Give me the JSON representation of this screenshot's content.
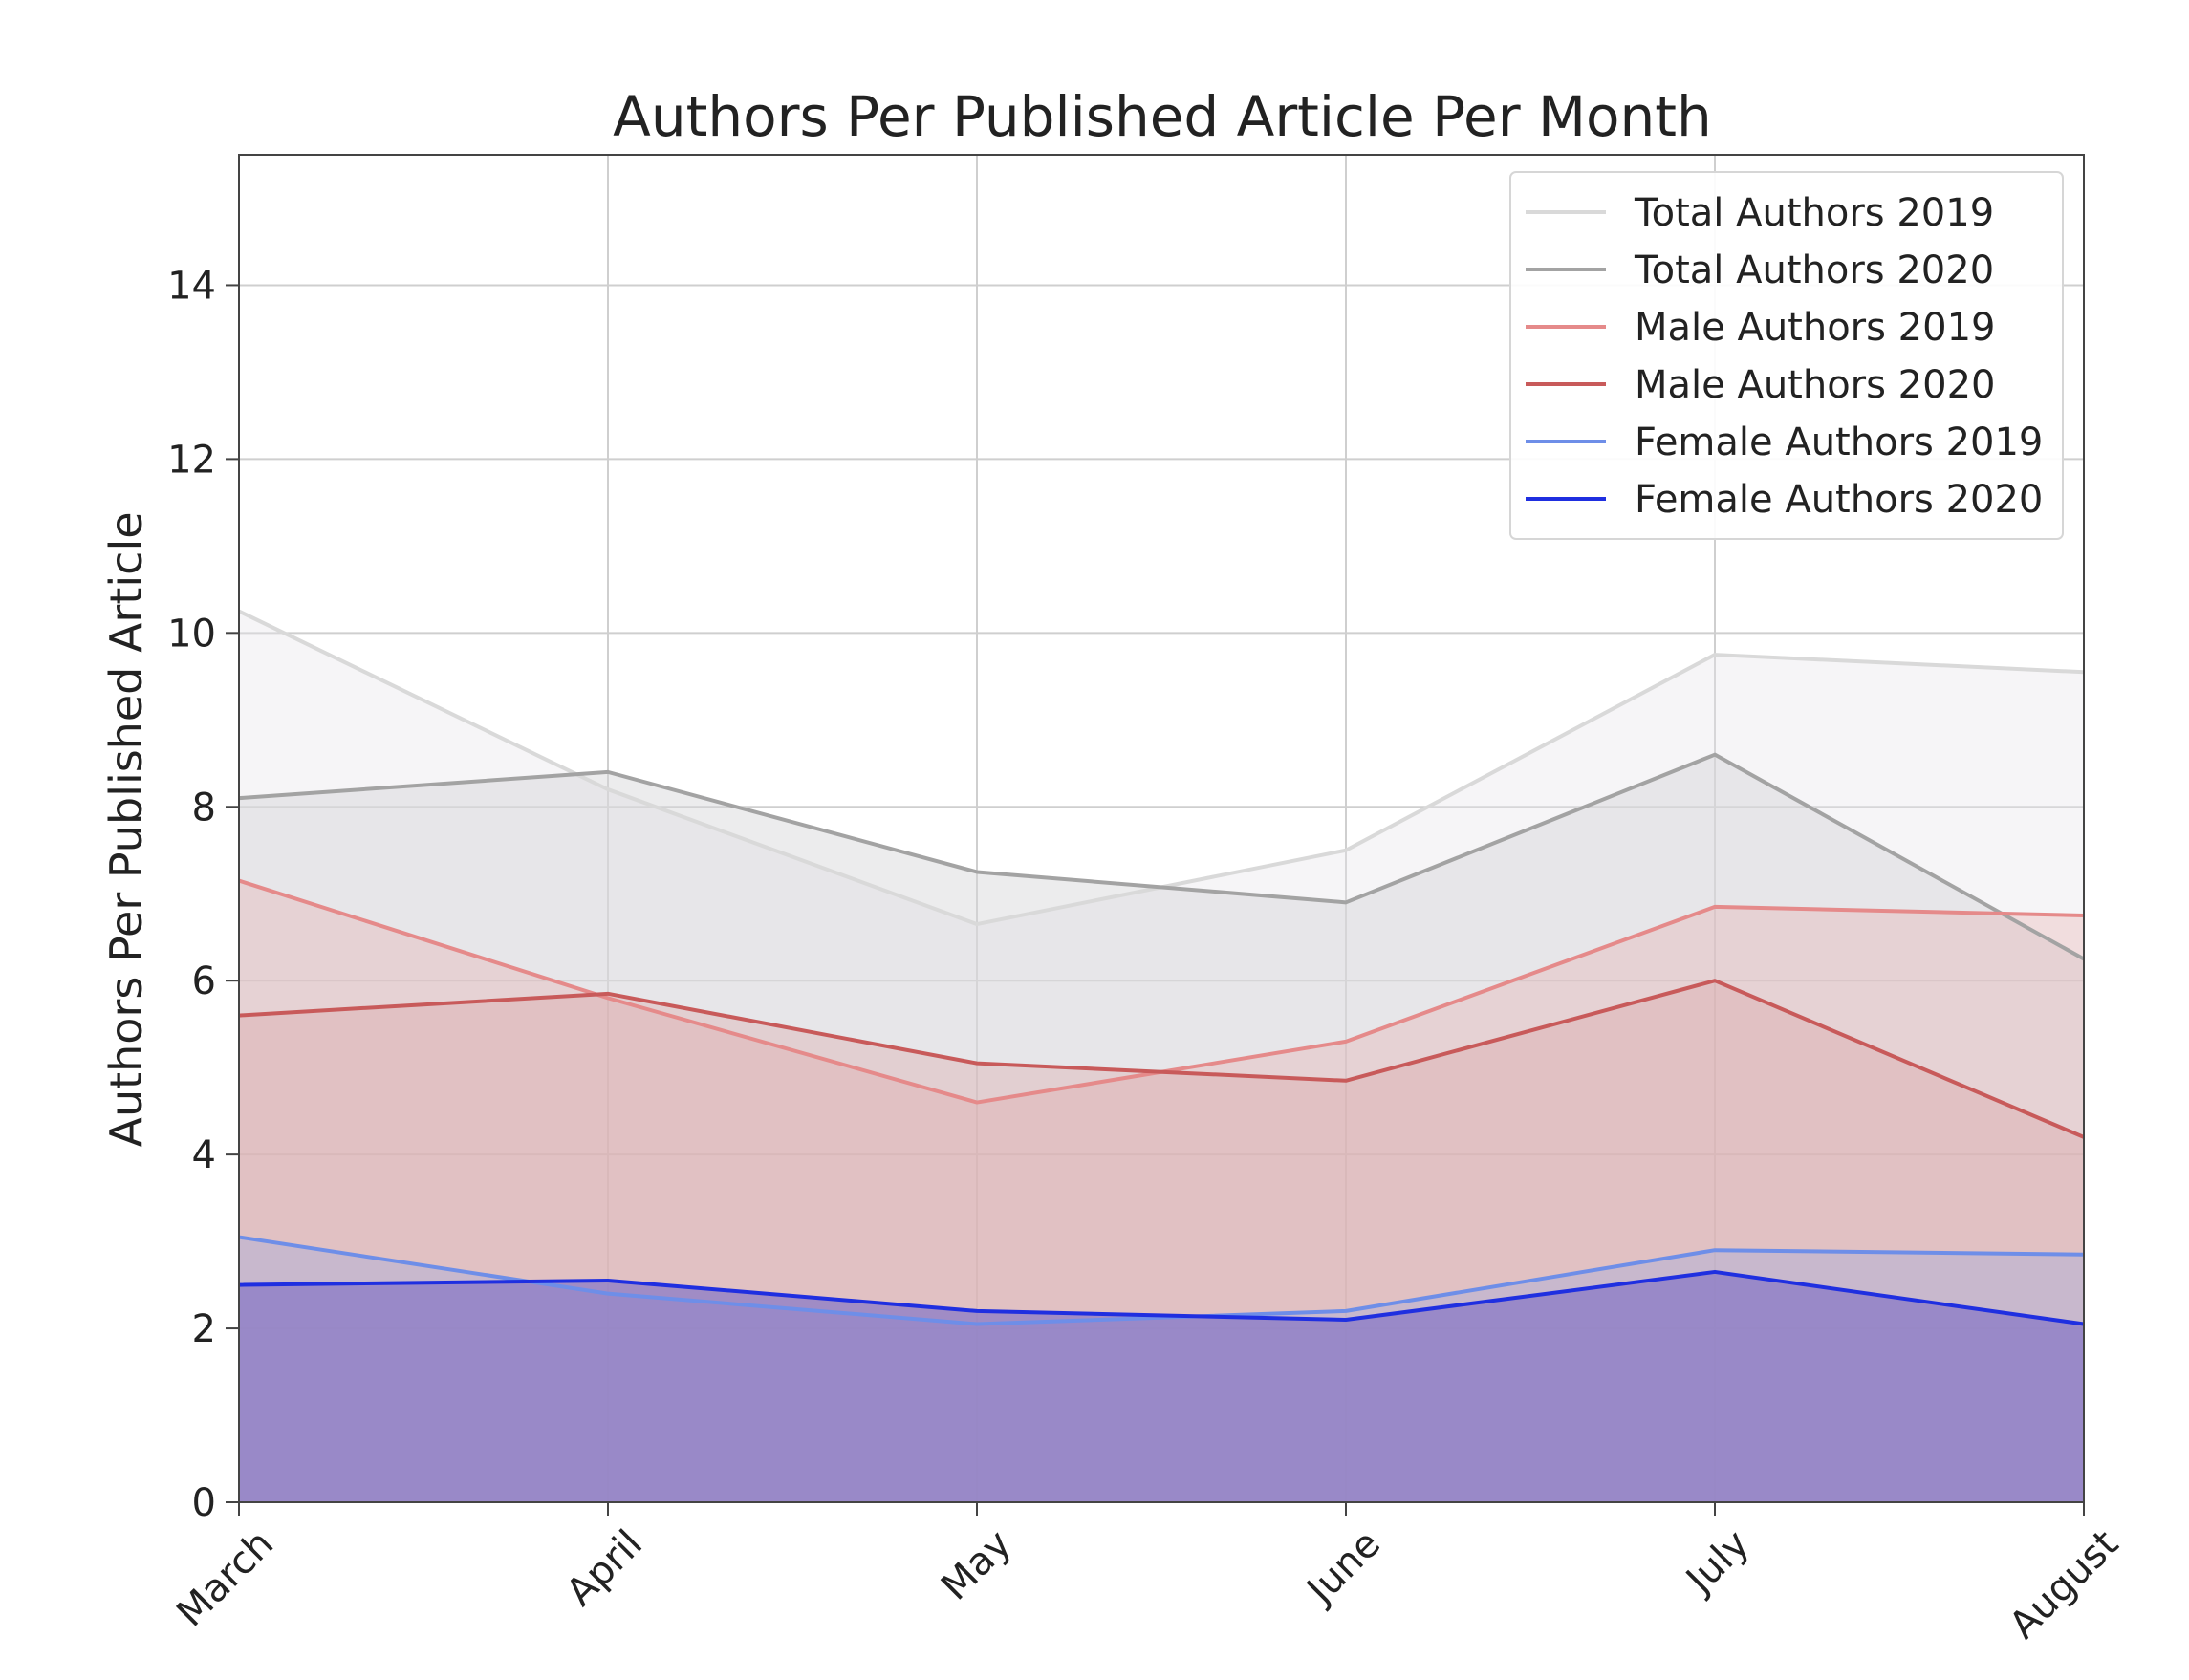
{
  "chart_data": {
    "type": "area",
    "title": "Authors Per Published Article Per Month",
    "ylabel": "Authors Per Published Article",
    "xlabel": "",
    "categories": [
      "March",
      "April",
      "May",
      "June",
      "July",
      "August"
    ],
    "ylim": [
      0,
      15.5
    ],
    "yticks": [
      0,
      2,
      4,
      6,
      8,
      10,
      12,
      14
    ],
    "grid": true,
    "legend_position": "top-right",
    "series": [
      {
        "name": "Total Authors 2019",
        "values": [
          10.25,
          8.2,
          6.65,
          7.5,
          9.75,
          9.55
        ],
        "color": "#d9d9d9",
        "fill": "#e6e3e8",
        "fill_opacity": 0.35
      },
      {
        "name": "Total Authors 2020",
        "values": [
          8.1,
          8.4,
          7.25,
          6.9,
          8.6,
          6.25
        ],
        "color": "#a3a3a3",
        "fill": "#d4d4d6",
        "fill_opacity": 0.45
      },
      {
        "name": "Male Authors 2019",
        "values": [
          7.15,
          5.8,
          4.6,
          5.3,
          6.85,
          6.75
        ],
        "color": "#e58a8a",
        "fill": "#e3a4a4",
        "fill_opacity": 0.3
      },
      {
        "name": "Male Authors 2020",
        "values": [
          5.6,
          5.85,
          5.05,
          4.85,
          6.0,
          4.2
        ],
        "color": "#c85a5a",
        "fill": "#d89a9a",
        "fill_opacity": 0.3
      },
      {
        "name": "Female Authors 2019",
        "values": [
          3.05,
          2.4,
          2.05,
          2.2,
          2.9,
          2.85
        ],
        "color": "#6e8ee8",
        "fill": "#9aa8e0",
        "fill_opacity": 0.35
      },
      {
        "name": "Female Authors 2020",
        "values": [
          2.5,
          2.55,
          2.2,
          2.1,
          2.65,
          2.05
        ],
        "color": "#1f2fe0",
        "fill": "#8a7ac6",
        "fill_opacity": 0.75
      }
    ]
  }
}
